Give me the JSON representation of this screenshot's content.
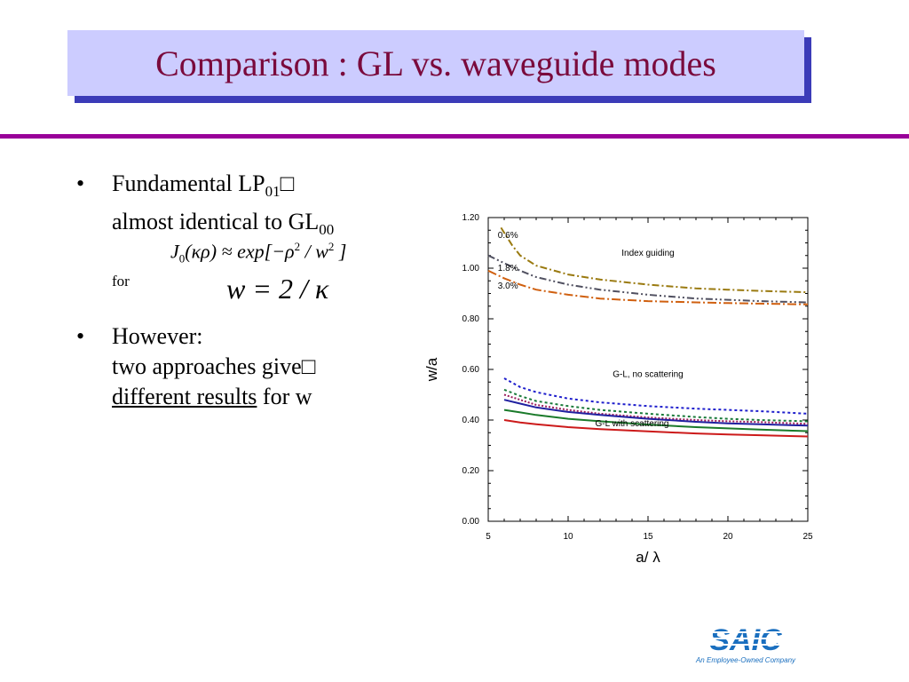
{
  "slide": {
    "title": "Comparison : GL vs. waveguide modes",
    "bullet1": {
      "line1": "Fundamental LP",
      "line1_sub": "01",
      "line1_tail": "□",
      "line2": "almost identical to GL",
      "line2_sub": "00"
    },
    "formula1": {
      "lhs": "J",
      "lhs_sub": "0",
      "lhs_arg": "(κρ) ≈ exp[−ρ",
      "exp_sup": "2",
      "mid": " / w",
      "w_sup": "2",
      "end": " ]"
    },
    "for_label": "for",
    "formula2": "w = 2 / κ",
    "bullet2": {
      "line1": "However:",
      "line2": "two approaches give□",
      "line3_underlined": "different results",
      "line3_tail": " for w"
    },
    "logo": {
      "text": "SAIC",
      "tagline": "An Employee-Owned Company",
      "color": "#1a6fbf"
    }
  },
  "chart_data": {
    "type": "line",
    "xlabel": "a/ λ",
    "ylabel": "w/a",
    "xlim": [
      5,
      25
    ],
    "ylim": [
      0.0,
      1.2
    ],
    "x_ticks": [
      "5",
      "10",
      "15",
      "20",
      "25"
    ],
    "y_ticks": [
      "0.00",
      "0.20",
      "0.40",
      "0.60",
      "0.80",
      "1.00",
      "1.20"
    ],
    "annotations": [
      "0.6%",
      "1.8%",
      "3.0%",
      "Index guiding",
      "G-L, no scattering",
      "G-L with scattering"
    ],
    "series": [
      {
        "color": "#9a7a10",
        "dash": "8,3,2,3",
        "x": [
          5.8,
          6.5,
          7,
          8,
          10,
          12,
          15,
          18,
          20,
          22,
          25
        ],
        "y": [
          1.16,
          1.09,
          1.05,
          1.01,
          0.975,
          0.955,
          0.935,
          0.92,
          0.915,
          0.91,
          0.905
        ]
      },
      {
        "color": "#505060",
        "dash": "8,3,2,3,2,3",
        "x": [
          5.0,
          6,
          7,
          8,
          10,
          12,
          15,
          18,
          20,
          22,
          25
        ],
        "y": [
          1.05,
          1.02,
          0.99,
          0.965,
          0.935,
          0.915,
          0.895,
          0.88,
          0.875,
          0.87,
          0.865
        ]
      },
      {
        "color": "#d06010",
        "dash": "10,3,2,3",
        "x": [
          5.0,
          6,
          7,
          8,
          10,
          12,
          15,
          18,
          20,
          22,
          25
        ],
        "y": [
          0.99,
          0.96,
          0.935,
          0.915,
          0.895,
          0.88,
          0.87,
          0.865,
          0.862,
          0.86,
          0.857
        ]
      },
      {
        "color": "#1f1fcc",
        "dash": "3,3",
        "x": [
          6,
          7,
          8,
          10,
          12,
          15,
          18,
          20,
          22,
          25
        ],
        "y": [
          0.565,
          0.53,
          0.51,
          0.485,
          0.47,
          0.455,
          0.445,
          0.44,
          0.435,
          0.425
        ]
      },
      {
        "color": "#1a7a3a",
        "dash": "3,3",
        "x": [
          6,
          7,
          8,
          10,
          12,
          15,
          18,
          20,
          22,
          25
        ],
        "y": [
          0.52,
          0.495,
          0.475,
          0.455,
          0.44,
          0.425,
          0.412,
          0.405,
          0.4,
          0.395
        ]
      },
      {
        "color": "#9a1a5a",
        "dash": "2,2",
        "x": [
          6,
          7,
          8,
          10,
          12,
          15,
          18,
          20,
          22,
          25
        ],
        "y": [
          0.5,
          0.48,
          0.46,
          0.44,
          0.425,
          0.41,
          0.4,
          0.395,
          0.392,
          0.385
        ]
      },
      {
        "color": "#2020a0",
        "dash": "",
        "x": [
          6,
          7,
          8,
          10,
          12,
          15,
          18,
          20,
          22,
          25
        ],
        "y": [
          0.48,
          0.465,
          0.45,
          0.432,
          0.42,
          0.405,
          0.393,
          0.387,
          0.383,
          0.378
        ]
      },
      {
        "color": "#1a7a2a",
        "dash": "",
        "x": [
          6,
          7,
          8,
          10,
          12,
          15,
          18,
          20,
          22,
          25
        ],
        "y": [
          0.44,
          0.43,
          0.42,
          0.405,
          0.395,
          0.382,
          0.372,
          0.367,
          0.362,
          0.356
        ]
      },
      {
        "color": "#cc1a1a",
        "dash": "",
        "x": [
          6,
          7,
          8,
          10,
          12,
          15,
          18,
          20,
          22,
          25
        ],
        "y": [
          0.4,
          0.39,
          0.383,
          0.372,
          0.364,
          0.355,
          0.347,
          0.343,
          0.34,
          0.335
        ]
      }
    ]
  }
}
